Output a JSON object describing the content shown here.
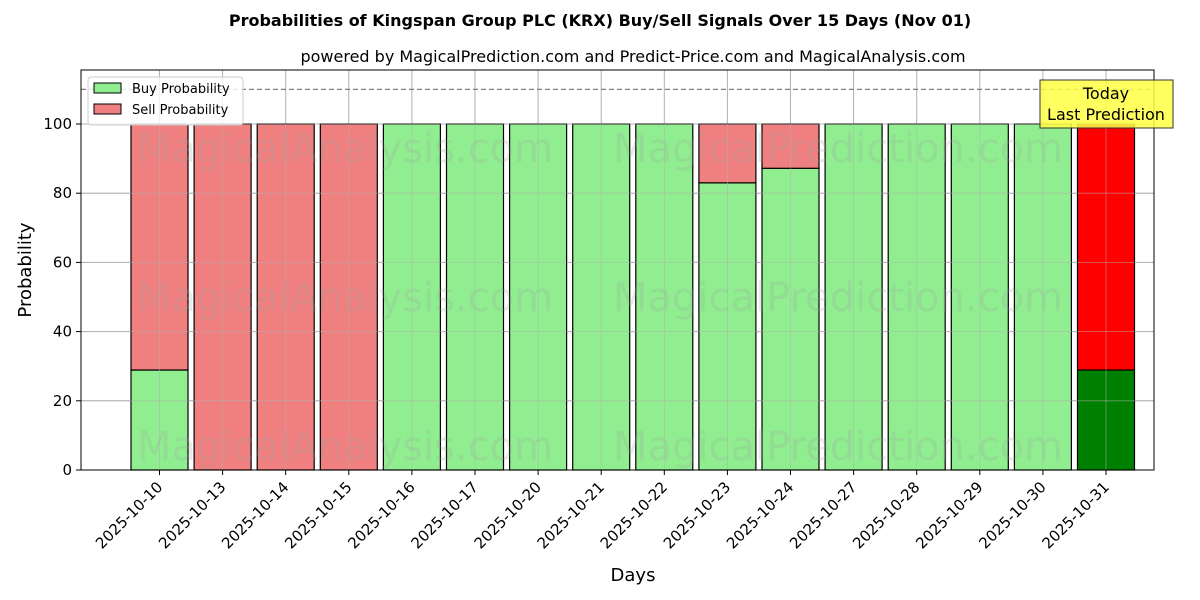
{
  "chart_data": {
    "type": "bar",
    "stacked": true,
    "title": "Probabilities of Kingspan Group PLC (KRX) Buy/Sell Signals Over 15 Days (Nov 01)",
    "subtitle": "powered by MagicalPrediction.com and Predict-Price.com and MagicalAnalysis.com",
    "xlabel": "Days",
    "ylabel": "Probability",
    "ylim": [
      0,
      115
    ],
    "yticks": [
      0,
      20,
      40,
      60,
      80,
      100
    ],
    "grid": true,
    "legend_position": "upper left",
    "categories": [
      "2025-10-10",
      "2025-10-13",
      "2025-10-14",
      "2025-10-15",
      "2025-10-16",
      "2025-10-17",
      "2025-10-20",
      "2025-10-21",
      "2025-10-22",
      "2025-10-23",
      "2025-10-24",
      "2025-10-27",
      "2025-10-28",
      "2025-10-29",
      "2025-10-30",
      "2025-10-31"
    ],
    "series": [
      {
        "name": "Buy Probability",
        "color": "#90ee90",
        "values": [
          28.9,
          0,
          0,
          0,
          100,
          100,
          100,
          100,
          100,
          83.0,
          87.2,
          100,
          100,
          100,
          100,
          28.9
        ]
      },
      {
        "name": "Sell Probability",
        "color": "#f08080",
        "values": [
          71.1,
          100,
          100,
          100,
          0,
          0,
          0,
          0,
          0,
          17.0,
          12.8,
          0,
          0,
          0,
          0,
          71.1
        ]
      }
    ],
    "highlight": {
      "index": 15,
      "buy_color": "#008000",
      "sell_color": "#ff0000"
    },
    "reference_line": {
      "y": 110,
      "style": "dashed",
      "color": "#808080"
    },
    "annotation": {
      "line1": "Today",
      "line2": "Last Prediction",
      "bg": "#ffff44"
    },
    "watermarks": [
      "MagicalAnalysis.com",
      "MagicalPrediction.com"
    ]
  }
}
